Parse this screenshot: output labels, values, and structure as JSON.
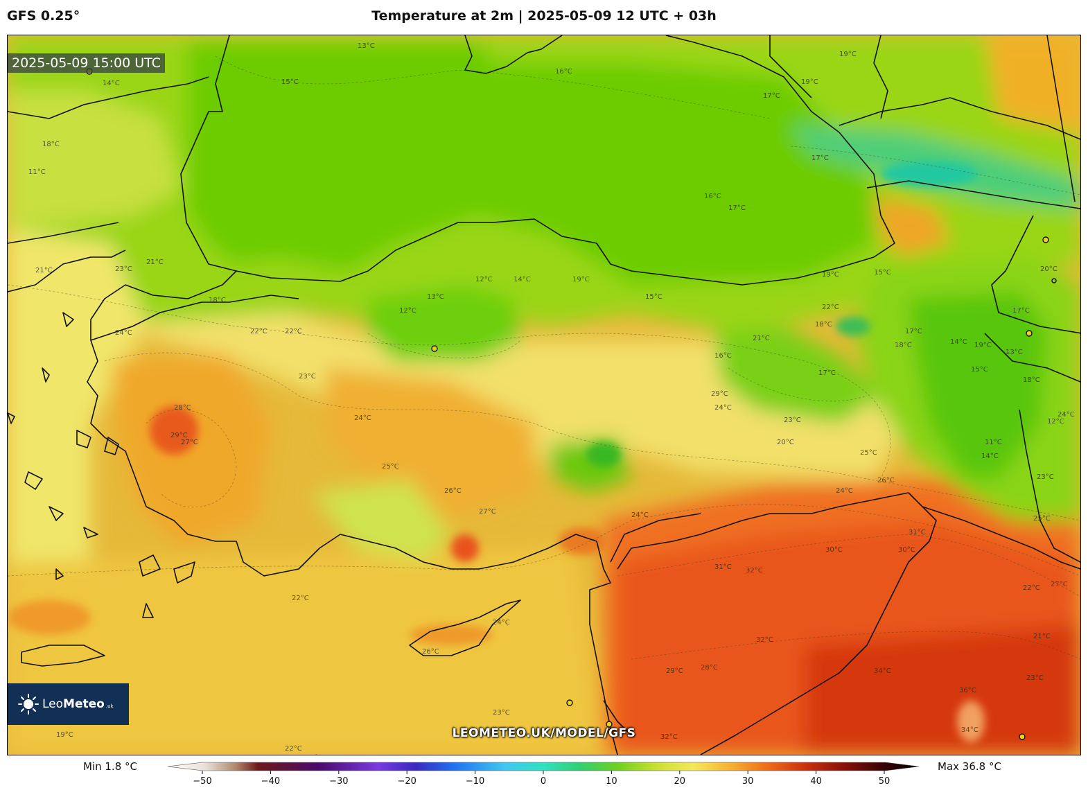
{
  "header": {
    "model": "GFS 0.25°",
    "title": "Temperature at 2m | 2025-05-09 12 UTC + 03h"
  },
  "map": {
    "valid_time": "2025-05-09 15:00 UTC",
    "watermark": "LEOMETEO.UK/MODEL/GFS",
    "logo": {
      "name_light": "Leo",
      "name_bold": "Meteo",
      "suffix": ".uk"
    },
    "isotherm_labels": [
      "13°C",
      "14°C",
      "15°C",
      "16°C",
      "17°C",
      "17°C",
      "19°C",
      "19°C",
      "17°C",
      "16°C",
      "18°C",
      "11°C",
      "12°C",
      "13°C",
      "15°C",
      "19°C",
      "21°C",
      "23°C",
      "22°C",
      "24°C",
      "18°C",
      "12°C",
      "14°C",
      "19°C",
      "21°C",
      "22°C",
      "23°C",
      "24°C",
      "25°C",
      "26°C",
      "27°C",
      "28°C",
      "29°C",
      "20°C",
      "23°C",
      "22°C",
      "21°C",
      "18°C",
      "17°C",
      "16°C",
      "26°C",
      "24°C",
      "21°C",
      "23°C",
      "22°C",
      "19°C",
      "27°C",
      "29°C",
      "30°C",
      "31°C",
      "32°C",
      "28°C",
      "29°C",
      "32°C",
      "34°C",
      "36°C",
      "34°C",
      "32°C",
      "31°C",
      "30°C",
      "24°C",
      "23°C",
      "22°C",
      "24°C",
      "25°C",
      "17°C",
      "19°C",
      "20°C",
      "17°C",
      "14°C",
      "15°C",
      "18°C",
      "14°C",
      "11°C",
      "12°C",
      "13°C",
      "15°C",
      "18°C",
      "27°C",
      "23°C",
      "24°C",
      "25°C",
      "24°C",
      "26°C",
      "23°C",
      "21°C",
      "22°C"
    ],
    "legend_colors": {
      "cool_green": "#6fd000",
      "light_green": "#a8e010",
      "yellow": "#f5e85a",
      "orange": "#f2a41c",
      "red_orange": "#e8561a",
      "deep_red": "#c42a0a",
      "teal": "#20c8a0"
    }
  },
  "colorbar": {
    "min_label": "Min 1.8 °C",
    "max_label": "Max 36.8 °C",
    "ticks": [
      "−50",
      "−40",
      "−30",
      "−20",
      "−10",
      "0",
      "10",
      "20",
      "30",
      "40",
      "50"
    ]
  }
}
